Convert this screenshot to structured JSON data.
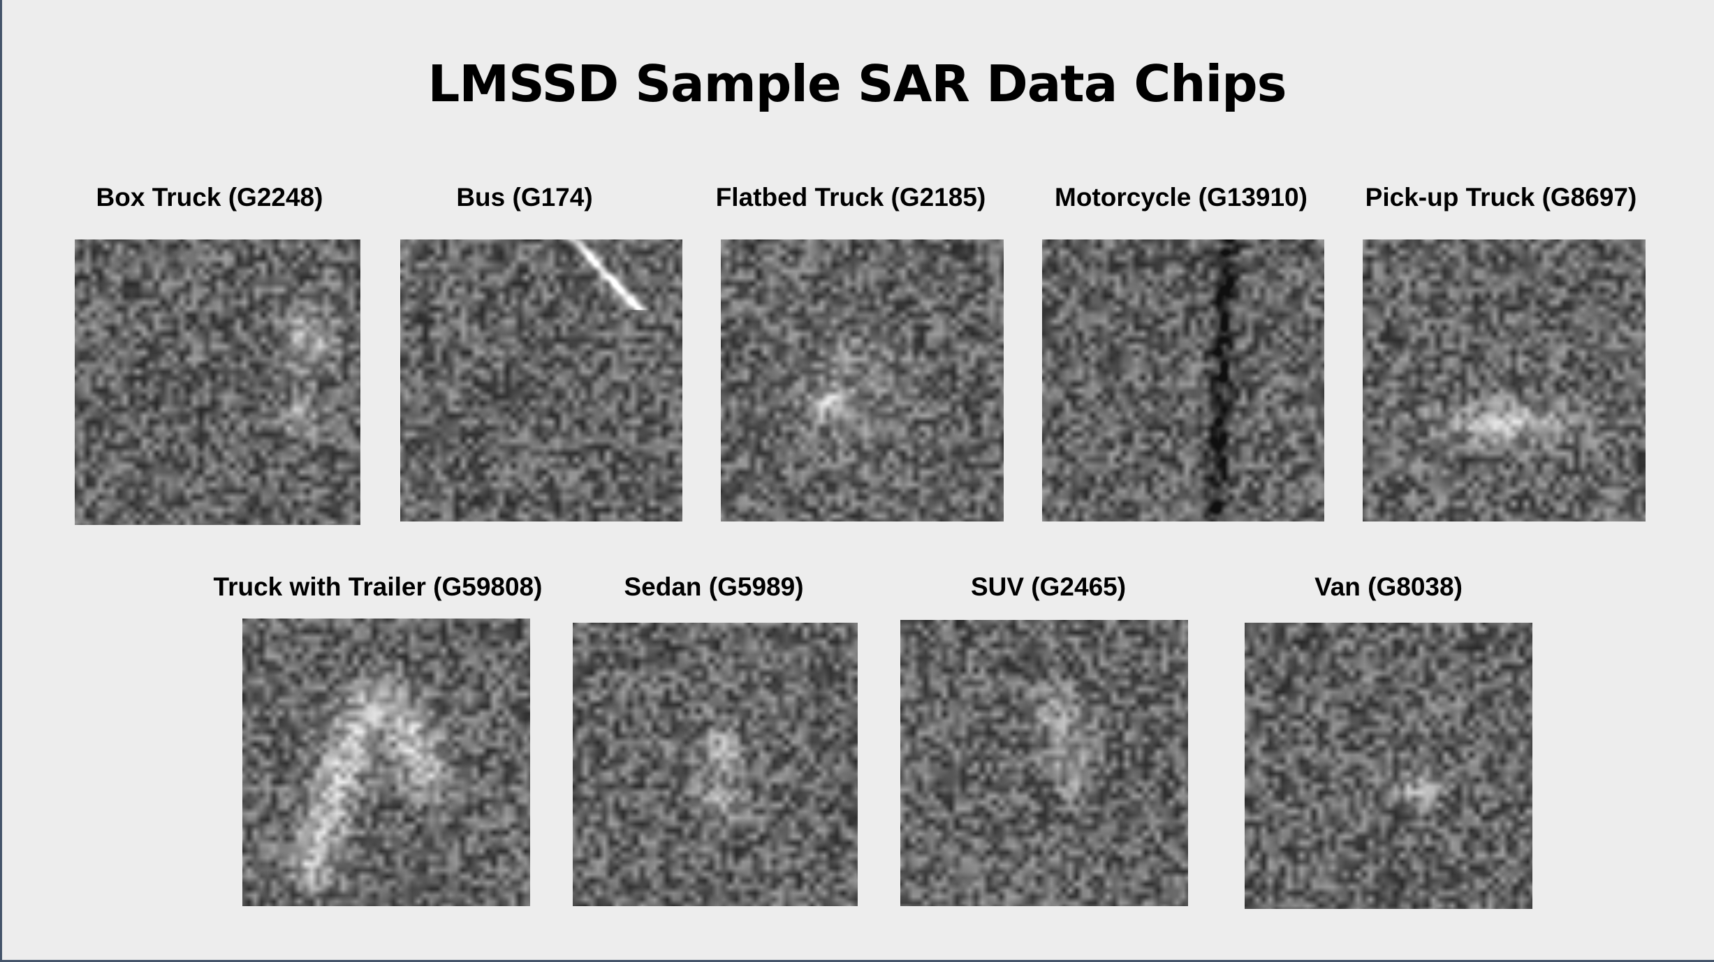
{
  "title": "LMSSD Sample SAR Data Chips",
  "chips": [
    {
      "label": "Box Truck (G2248)",
      "target": "blob-box"
    },
    {
      "label": "Bus (G174)",
      "target": "streak"
    },
    {
      "label": "Flatbed Truck (G2185)",
      "target": "point"
    },
    {
      "label": "Motorcycle (G13910)",
      "target": "dark-line"
    },
    {
      "label": "Pick-up Truck (G8697)",
      "target": "bar"
    },
    {
      "label": "Truck with Trailer (G59808)",
      "target": "arc"
    },
    {
      "label": "Sedan (G5989)",
      "target": "blob-small"
    },
    {
      "label": "SUV (G2465)",
      "target": "blob-soft"
    },
    {
      "label": "Van (G8038)",
      "target": "blob-faint"
    }
  ]
}
